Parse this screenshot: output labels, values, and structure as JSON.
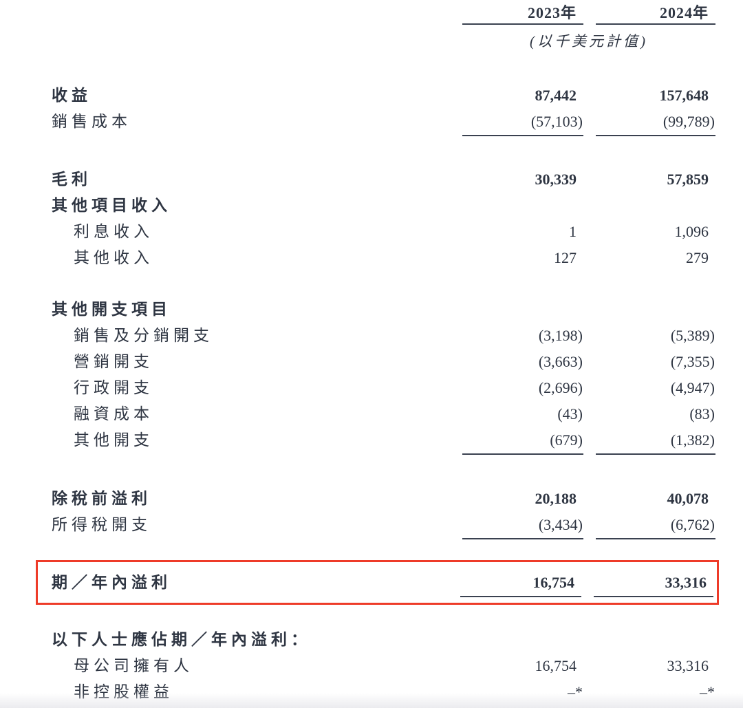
{
  "table": {
    "columns": [
      "2023年",
      "2024年"
    ],
    "unit_note": "(以千美元計值)",
    "highlight_color": "#ee3b29",
    "sections": [
      {
        "rows": [
          {
            "label": "收益",
            "bold": true,
            "v2023": "87,442",
            "v2024": "157,648"
          },
          {
            "label": "銷售成本",
            "v2023": "(57,103)",
            "v2024": "(99,789)",
            "underline": true
          }
        ]
      },
      {
        "rows": [
          {
            "label": "毛利",
            "bold": true,
            "v2023": "30,339",
            "v2024": "57,859"
          },
          {
            "label": "其他項目收入",
            "bold": true,
            "v2023": "",
            "v2024": ""
          },
          {
            "label": "利息收入",
            "indent": true,
            "v2023": "1",
            "v2024": "1,096"
          },
          {
            "label": "其他收入",
            "indent": true,
            "v2023": "127",
            "v2024": "279"
          }
        ]
      },
      {
        "rows": [
          {
            "label": "其他開支項目",
            "bold": true,
            "v2023": "",
            "v2024": ""
          },
          {
            "label": "銷售及分銷開支",
            "indent": true,
            "v2023": "(3,198)",
            "v2024": "(5,389)"
          },
          {
            "label": "營銷開支",
            "indent": true,
            "v2023": "(3,663)",
            "v2024": "(7,355)"
          },
          {
            "label": "行政開支",
            "indent": true,
            "v2023": "(2,696)",
            "v2024": "(4,947)"
          },
          {
            "label": "融資成本",
            "indent": true,
            "v2023": "(43)",
            "v2024": "(83)"
          },
          {
            "label": "其他開支",
            "indent": true,
            "v2023": "(679)",
            "v2024": "(1,382)",
            "underline": true
          }
        ]
      },
      {
        "rows": [
          {
            "label": "除稅前溢利",
            "bold": true,
            "v2023": "20,188",
            "v2024": "40,078"
          },
          {
            "label": "所得稅開支",
            "v2023": "(3,434)",
            "v2024": "(6,762)",
            "underline": true
          }
        ]
      },
      {
        "highlight": true,
        "rows": [
          {
            "label": "期／年內溢利",
            "bold": true,
            "v2023": "16,754",
            "v2024": "33,316",
            "underline": true
          }
        ]
      },
      {
        "rows": [
          {
            "label": "以下人士應佔期／年內溢利：",
            "bold": true,
            "v2023": "",
            "v2024": ""
          },
          {
            "label": "母公司擁有人",
            "indent": true,
            "v2023": "16,754",
            "v2024": "33,316"
          },
          {
            "label": "非控股權益",
            "indent": true,
            "v2023": "–*",
            "v2024": "–*"
          }
        ]
      }
    ]
  }
}
